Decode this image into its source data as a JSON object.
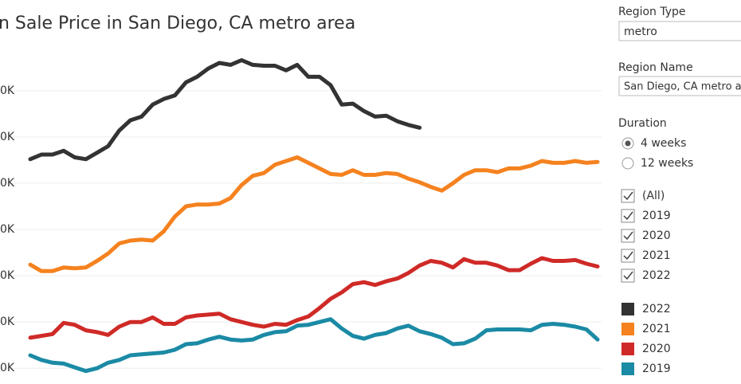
{
  "chart_data": {
    "type": "line",
    "title": "n Sale Price in San Diego, CA metro area",
    "categories": [
      null,
      null,
      null,
      null,
      null,
      null,
      null,
      null,
      null,
      null,
      null,
      null,
      null,
      null,
      null,
      null,
      null,
      null,
      null,
      null,
      null,
      null,
      null,
      null,
      null,
      null,
      null,
      null,
      null,
      null,
      null,
      null,
      null,
      null,
      null,
      null,
      null,
      null,
      null,
      null,
      null,
      null,
      null,
      null,
      null,
      null,
      null,
      null,
      null,
      null,
      null,
      null
    ],
    "ylim": [
      589,
      955
    ],
    "yticks": [
      {
        "value": 600,
        "label": "0K"
      },
      {
        "value": 650,
        "label": "0K"
      },
      {
        "value": 700,
        "label": "0K"
      },
      {
        "value": 750,
        "label": "0K"
      },
      {
        "value": 800,
        "label": "0K"
      },
      {
        "value": 850,
        "label": "0K"
      },
      {
        "value": 900,
        "label": "0K"
      }
    ],
    "grid": true,
    "series": [
      {
        "name": "2022",
        "color": "#333333",
        "values": [
          826,
          831,
          831,
          835,
          828,
          826,
          833,
          840,
          857,
          868,
          872,
          885,
          891,
          895,
          909,
          915,
          924,
          930,
          928,
          933,
          928,
          927,
          927,
          922,
          928,
          915,
          915,
          906,
          885,
          886,
          878,
          872,
          873,
          867,
          863,
          860,
          null,
          null,
          null,
          null,
          null,
          null,
          null,
          null,
          null,
          null,
          null,
          null,
          null,
          null,
          null,
          null
        ]
      },
      {
        "name": "2021",
        "color": "#f5821f",
        "values": [
          712,
          705,
          705,
          709,
          708,
          709,
          716,
          724,
          735,
          738,
          739,
          738,
          748,
          764,
          775,
          777,
          777,
          778,
          784,
          798,
          808,
          811,
          820,
          824,
          828,
          822,
          816,
          810,
          809,
          814,
          809,
          809,
          811,
          810,
          805,
          801,
          796,
          792,
          800,
          809,
          814,
          814,
          812,
          816,
          816,
          819,
          824,
          822,
          822,
          824,
          822,
          823
        ]
      },
      {
        "name": "2020",
        "color": "#cf2a27",
        "values": [
          633,
          635,
          637,
          649,
          647,
          641,
          639,
          636,
          645,
          650,
          650,
          655,
          648,
          648,
          655,
          657,
          658,
          659,
          653,
          650,
          647,
          645,
          648,
          647,
          652,
          656,
          665,
          675,
          682,
          691,
          693,
          690,
          694,
          697,
          703,
          711,
          716,
          714,
          709,
          718,
          714,
          714,
          711,
          706,
          706,
          713,
          719,
          716,
          716,
          717,
          713,
          710
        ]
      },
      {
        "name": "2019",
        "color": "#1b8aa5",
        "values": [
          614,
          609,
          606,
          605,
          601,
          597,
          600,
          606,
          609,
          614,
          615,
          616,
          617,
          620,
          626,
          627,
          631,
          634,
          631,
          630,
          631,
          636,
          639,
          640,
          646,
          647,
          650,
          653,
          643,
          635,
          632,
          636,
          638,
          643,
          646,
          640,
          637,
          633,
          626,
          627,
          632,
          641,
          642,
          642,
          642,
          641,
          647,
          648,
          647,
          645,
          642,
          631
        ]
      }
    ]
  },
  "controls": {
    "region_type": {
      "label": "Region Type",
      "value": "metro"
    },
    "region_name": {
      "label": "Region Name",
      "value": "San Diego, CA metro ar"
    },
    "duration": {
      "label": "Duration",
      "options": [
        "4 weeks",
        "12 weeks"
      ],
      "selected": 0
    },
    "year_filter": {
      "options": [
        "(All)",
        "2019",
        "2020",
        "2021",
        "2022"
      ]
    }
  }
}
